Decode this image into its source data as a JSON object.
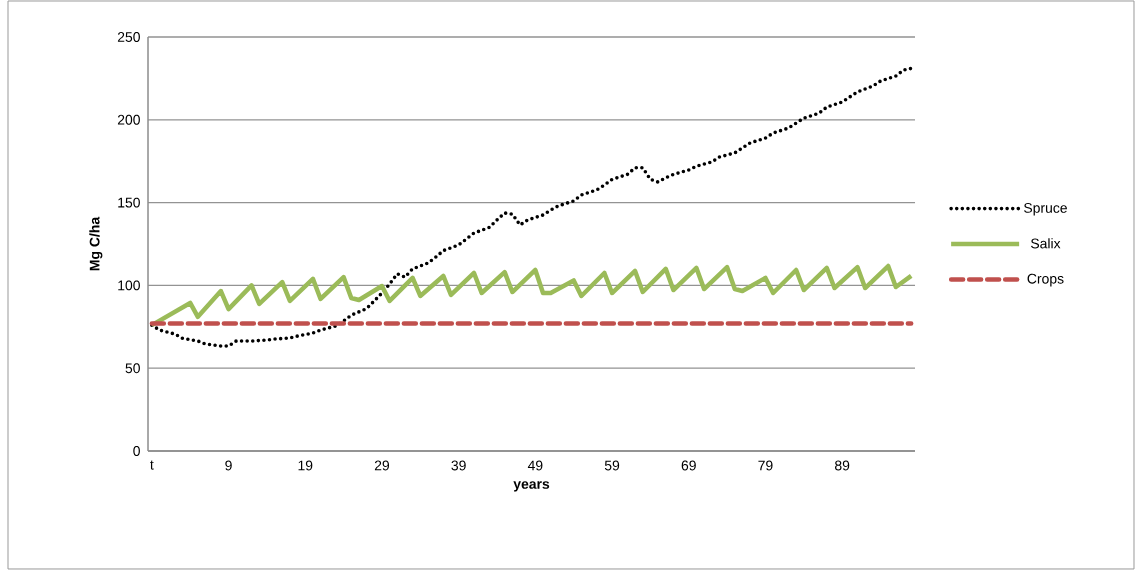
{
  "chart_data": {
    "type": "line",
    "xlabel": "years",
    "ylabel": "Mg C/ha",
    "xlim": [
      -1.5,
      98.5
    ],
    "ylim": [
      0,
      250
    ],
    "xticks": [
      {
        "value": -1,
        "label": "t"
      },
      9,
      19,
      29,
      39,
      49,
      59,
      69,
      79,
      89
    ],
    "yticks": [
      0,
      50,
      100,
      150,
      200,
      250
    ],
    "grid": "y",
    "legend": "right",
    "marker": "none",
    "series": [
      {
        "name": "Spruce",
        "color": "#000000",
        "line_style": "dotted",
        "x": [
          -1,
          0,
          2,
          3,
          5,
          6,
          8,
          9,
          10,
          12,
          14,
          15,
          17,
          18,
          20,
          21,
          23,
          24,
          25,
          27,
          28,
          29,
          30,
          31,
          32,
          33,
          35,
          36,
          37,
          39,
          40,
          41,
          43,
          44,
          45,
          46,
          47,
          48,
          50,
          51,
          52,
          54,
          55,
          57,
          58,
          59,
          61,
          62,
          63,
          64,
          65,
          66,
          67,
          69,
          70,
          72,
          73,
          75,
          76,
          77,
          79,
          80,
          82,
          83,
          84,
          86,
          87,
          89,
          90,
          91,
          93,
          94,
          96,
          97,
          98
        ],
        "values": [
          76,
          73,
          70.6,
          68,
          66.4,
          64.6,
          63.4,
          63.4,
          66.4,
          66.4,
          67,
          67.6,
          68.2,
          69.4,
          71.2,
          73,
          75.5,
          78.5,
          82,
          86,
          90.6,
          95.4,
          100.8,
          107,
          105,
          110,
          113.5,
          117,
          121,
          124.4,
          128,
          131.6,
          135,
          139.5,
          143.7,
          143,
          136.5,
          139.5,
          142.5,
          145.5,
          148,
          151,
          154.6,
          157.6,
          160.6,
          164,
          167,
          171,
          171,
          164,
          162.4,
          165,
          167,
          169.7,
          172,
          174.5,
          177.5,
          180,
          183,
          186,
          189,
          192,
          195,
          198,
          201,
          204,
          207.7,
          210.7,
          213.8,
          216.8,
          220.4,
          223.4,
          226.4,
          230,
          231
        ]
      },
      {
        "name": "Salix",
        "color": "#9bbb59",
        "line_style": "solid",
        "x": [
          -1,
          4,
          5,
          8,
          9,
          12,
          13,
          16,
          17,
          20,
          21,
          24,
          25,
          26,
          29,
          30,
          33,
          34,
          37,
          38,
          41,
          42,
          45,
          46,
          49,
          50,
          51,
          54,
          55,
          58,
          59,
          62,
          63,
          66,
          67,
          70,
          71,
          74,
          75,
          76,
          79,
          80,
          83,
          84,
          87,
          88,
          91,
          92,
          95,
          96,
          98
        ],
        "values": [
          76,
          89.4,
          81,
          96.6,
          85.7,
          100,
          88.8,
          102,
          90.6,
          103.9,
          91.8,
          105,
          92.4,
          91.2,
          99.6,
          90.6,
          104.5,
          93.6,
          105.7,
          94.2,
          107.5,
          95.4,
          108,
          96,
          109.3,
          95.4,
          95.4,
          103,
          93.6,
          107.5,
          95.4,
          108.7,
          96,
          110,
          97.2,
          110.5,
          97.8,
          111,
          97.8,
          96.6,
          104.5,
          95.4,
          109.3,
          97.2,
          110.5,
          98.4,
          111,
          98.4,
          111.7,
          99,
          105.7
        ]
      },
      {
        "name": "Crops",
        "color": "#c0504d",
        "line_style": "dashed",
        "x": [
          -1,
          98
        ],
        "values": [
          77,
          77
        ]
      }
    ]
  }
}
